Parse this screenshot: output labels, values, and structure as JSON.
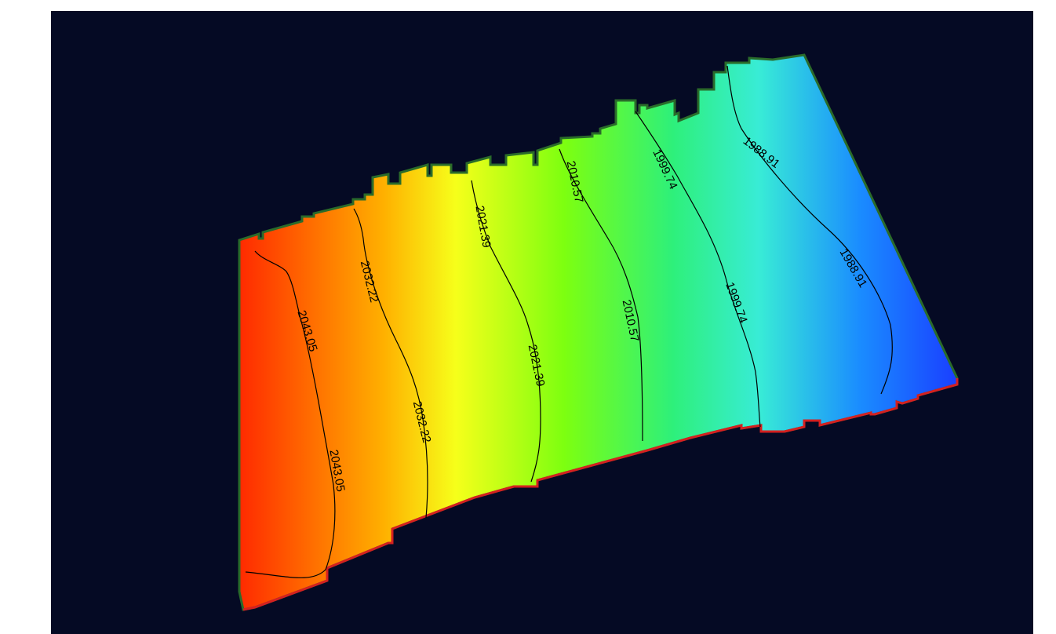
{
  "surface": {
    "colors": {
      "background": "#050a24",
      "high": "#ff2a00",
      "mid_high": "#f6ff1a",
      "mid": "#7dff10",
      "mid_low": "#38ecd6",
      "low": "#1a3cff",
      "top_edge": "#2a6b2a",
      "bottom_edge": "#d42020"
    }
  },
  "contours": [
    {
      "value": "2043.05",
      "labels": [
        "2043.05",
        "2043.05"
      ]
    },
    {
      "value": "2032.22",
      "labels": [
        "2032.22",
        "2032.22"
      ]
    },
    {
      "value": "2021.39",
      "labels": [
        "2021.39",
        "2021.39"
      ]
    },
    {
      "value": "2010.57",
      "labels": [
        "2010.57",
        "2010.57"
      ]
    },
    {
      "value": "1999.74",
      "labels": [
        "1999.74",
        "1999.74"
      ]
    },
    {
      "value": "1988.91",
      "labels": [
        "1988.91",
        "1988.91"
      ]
    }
  ]
}
